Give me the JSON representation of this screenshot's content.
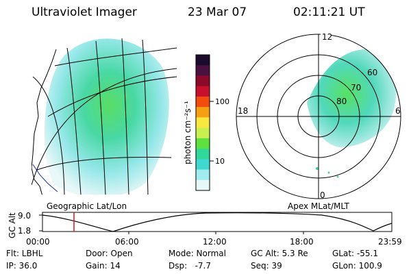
{
  "header": {
    "title": "Ultraviolet Imager",
    "date": "23 Mar 07",
    "time": "02:11:21 UT"
  },
  "left_map": {
    "caption": "Geographic Lat/Lon"
  },
  "right_map": {
    "caption": "Apex MLat/MLT",
    "mlt_labels": [
      "12",
      "18",
      "6",
      "0"
    ],
    "lat_labels": [
      "60",
      "70",
      "80"
    ]
  },
  "colorbar": {
    "label": "photon cm⁻²s⁻¹",
    "scale": "log",
    "ticks": [
      "100",
      "10"
    ],
    "colors": [
      "#1a0a2e",
      "#4a1040",
      "#8b0a2a",
      "#c8102e",
      "#f24d0e",
      "#f5a014",
      "#f8e840",
      "#c8f050",
      "#5de040",
      "#30d89a",
      "#40d8d0",
      "#a0ecf0",
      "#e6f8fa"
    ]
  },
  "altitude": {
    "axis_label": "GC Alt",
    "y_ticks": [
      "9.0",
      "1.8"
    ],
    "x_ticks": [
      "00:00",
      "06:00",
      "12:00",
      "18:00",
      "23:59"
    ],
    "current_marker_time": "02:11"
  },
  "info": {
    "row1": [
      "Flt: LBHL",
      "Door: Open",
      "Mode: Normal",
      "GC Alt: 5.3 Re",
      "GLat: -55.1"
    ],
    "row2": [
      "IP: 36.0",
      "Gain: 14",
      "Dsp:   -7.7",
      "Seq: 39",
      "GLon: 100.9"
    ]
  }
}
